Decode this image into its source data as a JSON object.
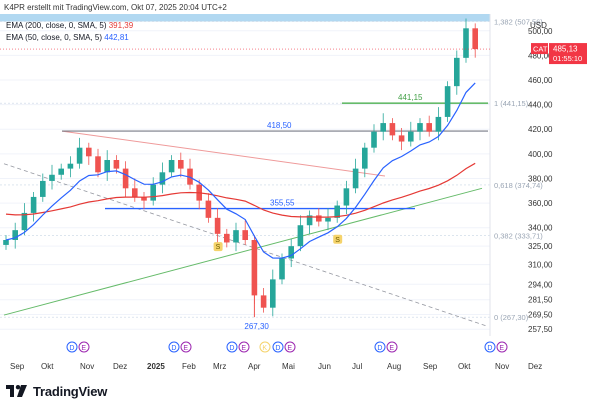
{
  "header": {
    "text": "K4PR erstellt mit TradingView.com, Okt 07, 2025 20:04 UTC+2"
  },
  "footer": {
    "brand": "TradingView",
    "logo_icon": "tradingview-logo-icon"
  },
  "legend": [
    {
      "label": "EMA (200, close, 0, SMA, 5)",
      "value": "391,39",
      "color": "#e53935"
    },
    {
      "label": "EMA (50, close, 0, SMA, 5)",
      "value": "442,81",
      "color": "#2962ff"
    }
  ],
  "price_axis": {
    "currency": "USD",
    "ticks": [
      "500,00",
      "480,00",
      "460,00",
      "440,00",
      "420,00",
      "400,00",
      "380,00",
      "360,00",
      "340,00",
      "325,00",
      "310,00",
      "294,00",
      "281,50",
      "269,50",
      "257,50"
    ],
    "last_price": {
      "symbol": "CAT",
      "price": "485,13",
      "countdown": "01:55:10",
      "color": "#f23645"
    }
  },
  "time_axis": {
    "labels": [
      "Sep",
      "Okt",
      "Nov",
      "Dez",
      "2025",
      "Feb",
      "Mrz",
      "Apr",
      "Mai",
      "Jun",
      "Jul",
      "Aug",
      "Sep",
      "Okt",
      "Nov",
      "Dez"
    ]
  },
  "annotations": {
    "levels": [
      "441,15",
      "418,50",
      "355,55"
    ],
    "low_label": "267,30",
    "fib": [
      "1,382 (507,56)",
      "1 (441,15)",
      "0,618 (374,74)",
      "0,382 (333,71)",
      "0 (267,30)"
    ],
    "support_markers": [
      "S",
      "S"
    ],
    "event_markers": [
      "D",
      "E",
      "D",
      "E",
      "D",
      "E",
      "K",
      "D",
      "E",
      "D",
      "E",
      "D",
      "E"
    ]
  },
  "chart_data": {
    "type": "candlestick",
    "symbol": "CAT",
    "currency": "USD",
    "ylim": [
      252,
      512
    ],
    "x_months": [
      "Sep",
      "Okt",
      "Nov",
      "Dez",
      "2025",
      "Feb",
      "Mrz",
      "Apr",
      "Mai",
      "Jun",
      "Jul",
      "Aug",
      "Sep",
      "Okt",
      "Nov",
      "Dez"
    ],
    "close_series": [
      [
        "Sep",
        330
      ],
      [
        "Sep",
        338
      ],
      [
        "Sep",
        352
      ],
      [
        "Okt",
        365
      ],
      [
        "Okt",
        378
      ],
      [
        "Okt",
        383
      ],
      [
        "Okt",
        388
      ],
      [
        "Nov",
        392
      ],
      [
        "Nov",
        405
      ],
      [
        "Nov",
        398
      ],
      [
        "Nov",
        385
      ],
      [
        "Dez",
        395
      ],
      [
        "Dez",
        388
      ],
      [
        "Dez",
        372
      ],
      [
        "Dez",
        365
      ],
      [
        "2025",
        362
      ],
      [
        "2025",
        375
      ],
      [
        "2025",
        385
      ],
      [
        "Feb",
        395
      ],
      [
        "Feb",
        388
      ],
      [
        "Feb",
        375
      ],
      [
        "Feb",
        362
      ],
      [
        "Mrz",
        348
      ],
      [
        "Mrz",
        335
      ],
      [
        "Mrz",
        328
      ],
      [
        "Mrz",
        338
      ],
      [
        "Apr",
        330
      ],
      [
        "Apr",
        285
      ],
      [
        "Apr",
        275
      ],
      [
        "Apr",
        298
      ],
      [
        "Mai",
        315
      ],
      [
        "Mai",
        325
      ],
      [
        "Mai",
        342
      ],
      [
        "Mai",
        350
      ],
      [
        "Jun",
        345
      ],
      [
        "Jun",
        348
      ],
      [
        "Jun",
        358
      ],
      [
        "Jun",
        372
      ],
      [
        "Jul",
        388
      ],
      [
        "Jul",
        405
      ],
      [
        "Jul",
        418
      ],
      [
        "Jul",
        425
      ],
      [
        "Aug",
        415
      ],
      [
        "Aug",
        410
      ],
      [
        "Aug",
        418
      ],
      [
        "Aug",
        425
      ],
      [
        "Sep",
        418
      ],
      [
        "Sep",
        430
      ],
      [
        "Sep",
        455
      ],
      [
        "Sep",
        478
      ],
      [
        "Okt",
        502
      ],
      [
        "Okt",
        485.13
      ]
    ],
    "ema_200": {
      "last": 391.39
    },
    "ema_50": {
      "last": 442.81
    },
    "horizontal_levels": [
      441.15,
      418.5,
      355.55
    ],
    "fibonacci": [
      {
        "ratio": 1.382,
        "price": 507.56
      },
      {
        "ratio": 1,
        "price": 441.15
      },
      {
        "ratio": 0.618,
        "price": 374.74
      },
      {
        "ratio": 0.382,
        "price": 333.71
      },
      {
        "ratio": 0,
        "price": 267.3
      }
    ],
    "low": 267.3,
    "last_close": 485.13
  },
  "colors": {
    "up": "#26a69a",
    "down": "#ef5350",
    "ema200": "#e53935",
    "ema50": "#2962ff",
    "level_green": "#66bb6a",
    "level_gray": "#787b86",
    "level_blue": "#2962ff",
    "trend_red": "#ef9a9a",
    "trend_green": "#66bb6a",
    "fib_band": "#a8d4f0",
    "marker_blue": "#2962ff",
    "marker_purple": "#9c27b0",
    "marker_yellow": "#f5d36b"
  }
}
